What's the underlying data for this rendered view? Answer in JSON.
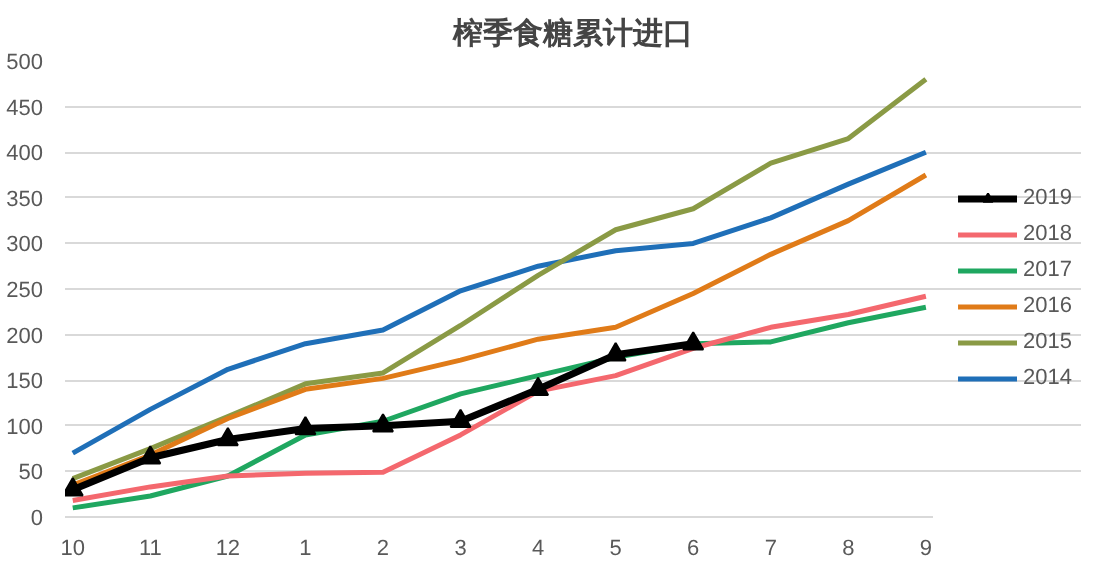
{
  "chart_data": {
    "type": "line",
    "title": "榨季食糖累计进口",
    "categories": [
      "10",
      "11",
      "12",
      "1",
      "2",
      "3",
      "4",
      "5",
      "6",
      "7",
      "8",
      "9"
    ],
    "ylim": [
      0,
      500
    ],
    "yticks": [
      0,
      50,
      100,
      150,
      200,
      250,
      300,
      350,
      400,
      450,
      500
    ],
    "grid": "y",
    "legend": "right",
    "series": [
      {
        "name": "2019",
        "color": "#000000",
        "marker": "triangle",
        "values": [
          30,
          65,
          85,
          97,
          100,
          105,
          140,
          178,
          190,
          null,
          null,
          null
        ]
      },
      {
        "name": "2018",
        "color": "#f4686e",
        "values": [
          18,
          33,
          45,
          48,
          49,
          90,
          138,
          155,
          185,
          208,
          222,
          242
        ]
      },
      {
        "name": "2017",
        "color": "#1fa760",
        "values": [
          10,
          23,
          45,
          90,
          105,
          135,
          155,
          175,
          190,
          192,
          213,
          230
        ]
      },
      {
        "name": "2016",
        "color": "#e07b18",
        "values": [
          35,
          68,
          108,
          140,
          152,
          172,
          195,
          208,
          245,
          288,
          325,
          375
        ]
      },
      {
        "name": "2015",
        "color": "#8a9a45",
        "values": [
          42,
          75,
          110,
          146,
          158,
          210,
          265,
          315,
          338,
          388,
          415,
          480
        ]
      },
      {
        "name": "2014",
        "color": "#1f6fb8",
        "values": [
          70,
          118,
          162,
          190,
          205,
          248,
          275,
          292,
          300,
          328,
          365,
          400
        ]
      }
    ]
  }
}
